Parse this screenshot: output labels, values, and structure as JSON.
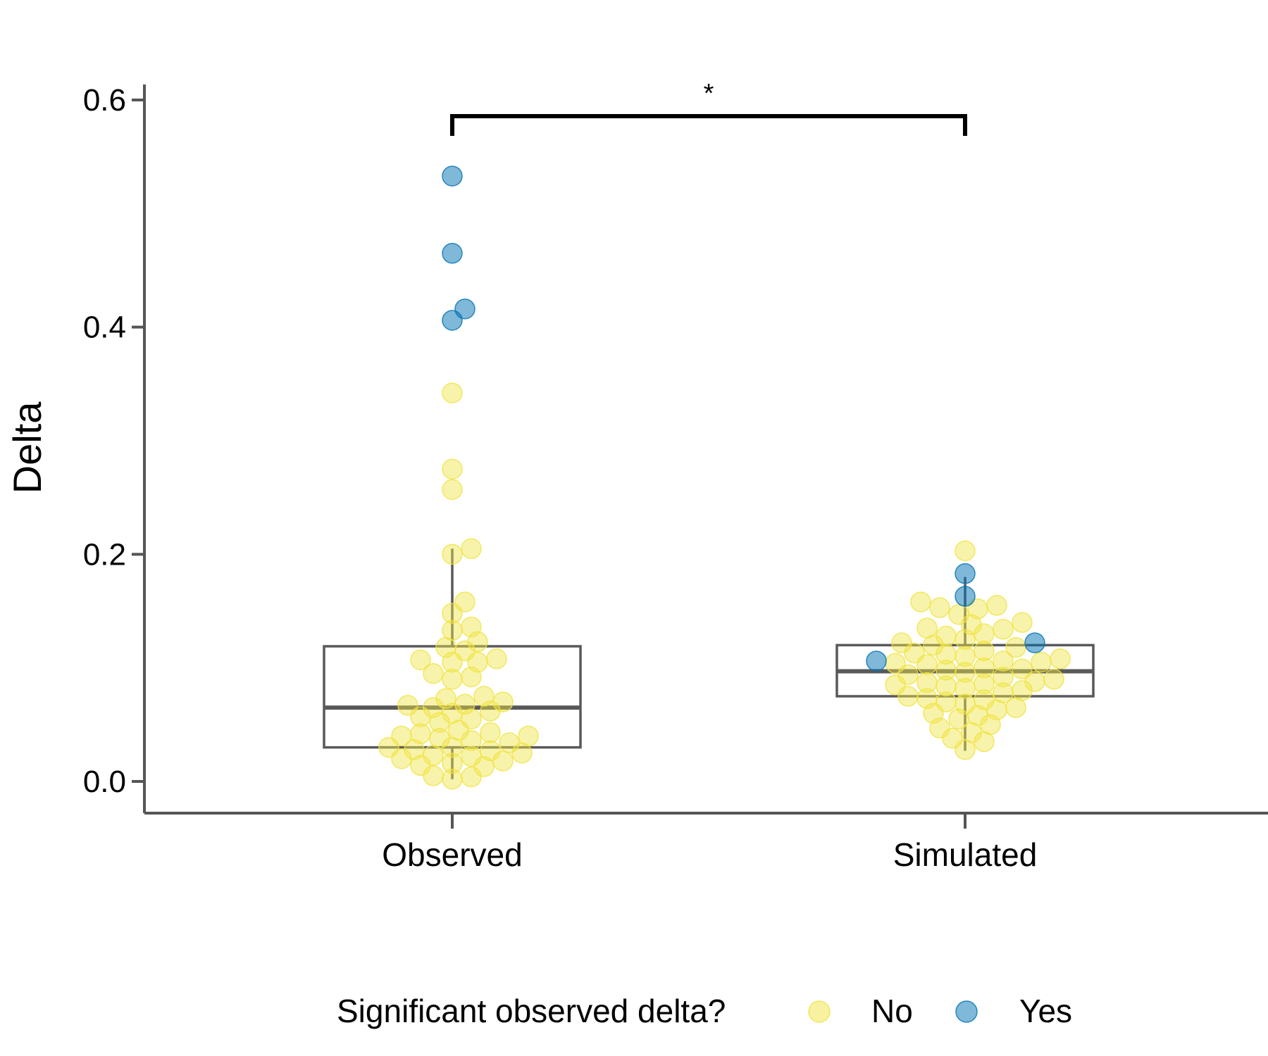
{
  "chart_data": {
    "type": "box",
    "ylabel": "Delta",
    "ylim": [
      -0.025,
      0.62
    ],
    "yticks": [
      "0.0",
      "0.2",
      "0.4",
      "0.6"
    ],
    "categories": [
      "Observed",
      "Simulated"
    ],
    "significance": {
      "from": "Observed",
      "to": "Simulated",
      "label": "*"
    },
    "legend": {
      "title": "Significant observed delta?",
      "entries": [
        {
          "label": "No",
          "color": "#f0e442"
        },
        {
          "label": "Yes",
          "color": "#0072b2"
        }
      ],
      "position": "bottom"
    },
    "boxes": [
      {
        "category": "Observed",
        "q1": 0.03,
        "median": 0.065,
        "q3": 0.119,
        "whisker_low": 0.002,
        "whisker_high": 0.205
      },
      {
        "category": "Simulated",
        "q1": 0.075,
        "median": 0.097,
        "q3": 0.12,
        "whisker_low": 0.027,
        "whisker_high": 0.18
      }
    ],
    "points": [
      {
        "category": "Observed",
        "significant": "Yes",
        "values": [
          0.533,
          0.465,
          0.416,
          0.406
        ]
      },
      {
        "category": "Observed",
        "significant": "No",
        "values": [
          0.342,
          0.275,
          0.257,
          0.205,
          0.2,
          0.158,
          0.148,
          0.136,
          0.133,
          0.123,
          0.118,
          0.115,
          0.108,
          0.107,
          0.105,
          0.105,
          0.095,
          0.092,
          0.09,
          0.075,
          0.073,
          0.07,
          0.068,
          0.067,
          0.065,
          0.062,
          0.06,
          0.057,
          0.055,
          0.052,
          0.045,
          0.043,
          0.042,
          0.04,
          0.04,
          0.038,
          0.036,
          0.034,
          0.03,
          0.03,
          0.028,
          0.027,
          0.025,
          0.023,
          0.022,
          0.02,
          0.018,
          0.016,
          0.014,
          0.013,
          0.005,
          0.004,
          0.002
        ]
      },
      {
        "category": "Simulated",
        "significant": "Yes",
        "values": [
          0.183,
          0.163,
          0.122,
          0.106
        ]
      },
      {
        "category": "Simulated",
        "significant": "No",
        "values": [
          0.203,
          0.158,
          0.155,
          0.153,
          0.152,
          0.147,
          0.14,
          0.138,
          0.135,
          0.134,
          0.13,
          0.128,
          0.125,
          0.122,
          0.12,
          0.118,
          0.115,
          0.113,
          0.112,
          0.11,
          0.108,
          0.106,
          0.105,
          0.104,
          0.103,
          0.1,
          0.099,
          0.098,
          0.096,
          0.094,
          0.092,
          0.09,
          0.088,
          0.087,
          0.086,
          0.085,
          0.084,
          0.082,
          0.08,
          0.078,
          0.075,
          0.073,
          0.072,
          0.07,
          0.068,
          0.065,
          0.063,
          0.06,
          0.058,
          0.055,
          0.05,
          0.047,
          0.043,
          0.038,
          0.035,
          0.028
        ]
      }
    ]
  }
}
